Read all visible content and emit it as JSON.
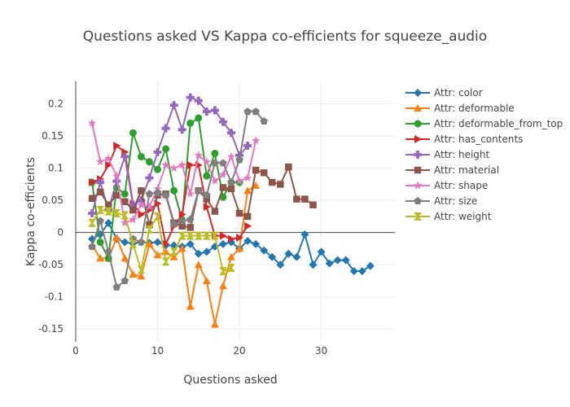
{
  "chart_data": {
    "type": "line",
    "title": "Questions asked VS Kappa co-efficients for squeeze_audio",
    "xlabel": "Questions asked",
    "ylabel": "Kappa co-efficients",
    "xlim": [
      0,
      39
    ],
    "ylim": [
      -0.17,
      0.235
    ],
    "xticks": [
      0,
      10,
      20,
      30
    ],
    "yticks": [
      -0.15,
      -0.1,
      -0.05,
      0,
      0.05,
      0.1,
      0.15,
      0.2
    ],
    "grid": true,
    "legend_position": "right",
    "series": [
      {
        "name": "Attr: color",
        "color": "#1f77b4",
        "marker": "diamond",
        "x": [
          2,
          3,
          4,
          5,
          6,
          7,
          8,
          9,
          10,
          11,
          12,
          13,
          14,
          15,
          16,
          17,
          18,
          19,
          20,
          21,
          22,
          23,
          24,
          25,
          26,
          27,
          28,
          29,
          30,
          31,
          32,
          33,
          34,
          35,
          36
        ],
        "y": [
          -0.01,
          -0.003,
          0.015,
          -0.01,
          -0.015,
          -0.017,
          -0.015,
          -0.016,
          -0.015,
          -0.02,
          -0.02,
          -0.022,
          -0.018,
          -0.033,
          -0.03,
          -0.022,
          -0.018,
          -0.015,
          -0.025,
          -0.013,
          -0.018,
          -0.028,
          -0.038,
          -0.05,
          -0.033,
          -0.038,
          -0.003,
          -0.05,
          -0.03,
          -0.048,
          -0.043,
          -0.043,
          -0.06,
          -0.06,
          -0.052
        ]
      },
      {
        "name": "Attr: deformable",
        "color": "#ff7f0e",
        "marker": "triangle-up",
        "x": [
          2,
          3,
          4,
          5,
          6,
          7,
          8,
          9,
          10,
          11,
          12,
          13,
          14,
          15,
          16,
          17,
          18,
          19,
          20,
          21,
          22
        ],
        "y": [
          -0.02,
          -0.04,
          -0.04,
          -0.008,
          -0.04,
          -0.065,
          -0.068,
          -0.018,
          -0.035,
          -0.03,
          -0.038,
          -0.025,
          -0.115,
          -0.05,
          -0.075,
          -0.143,
          -0.083,
          -0.038,
          -0.025,
          0.065,
          0.073
        ]
      },
      {
        "name": "Attr: deformable_from_top",
        "color": "#2ca02c",
        "marker": "circle",
        "x": [
          2,
          3,
          4,
          5,
          6,
          7,
          8,
          9,
          10,
          11,
          12,
          13,
          14,
          15,
          16,
          17,
          18,
          19,
          20
        ],
        "y": [
          0.078,
          -0.015,
          -0.04,
          0.07,
          0.06,
          0.155,
          0.118,
          0.11,
          0.098,
          0.13,
          0.065,
          0.02,
          0.17,
          0.178,
          0.088,
          0.123,
          0.055,
          0.078,
          0.078
        ]
      },
      {
        "name": "Attr: has_contents",
        "color": "#d62728",
        "marker": "triangle-right",
        "x": [
          2,
          3,
          4,
          5,
          6,
          7,
          8,
          9,
          10,
          11,
          12,
          13,
          14,
          15,
          16,
          17,
          18,
          19,
          20,
          21
        ],
        "y": [
          0.078,
          0.083,
          0.105,
          0.135,
          0.125,
          0.045,
          0.028,
          0.035,
          0.045,
          -0.018,
          0.01,
          0.028,
          0.105,
          0.105,
          0.04,
          -0.005,
          -0.005,
          -0.01,
          -0.008,
          0.01
        ]
      },
      {
        "name": "Attr: height",
        "color": "#9467bd",
        "marker": "cross",
        "x": [
          2,
          3,
          4,
          5,
          6,
          7,
          8,
          9,
          10,
          11,
          12,
          13,
          14,
          15,
          16,
          17,
          18,
          19,
          20,
          21
        ],
        "y": [
          0.03,
          0.078,
          0.035,
          0.08,
          0.118,
          0.043,
          0.05,
          0.085,
          0.125,
          0.162,
          0.198,
          0.16,
          0.21,
          0.205,
          0.188,
          0.19,
          0.172,
          0.155,
          0.12,
          0.135
        ]
      },
      {
        "name": "Attr: material",
        "color": "#8c564b",
        "marker": "square",
        "x": [
          2,
          3,
          4,
          5,
          6,
          7,
          8,
          9,
          10,
          11,
          12,
          13,
          14,
          15,
          16,
          17,
          18,
          19,
          20,
          21,
          22,
          23,
          24,
          25,
          26,
          27,
          28,
          29
        ],
        "y": [
          0.053,
          0.063,
          0.043,
          0.058,
          0.048,
          0.035,
          0.065,
          0.012,
          0.058,
          0.06,
          0.015,
          0.01,
          0.008,
          0.065,
          0.052,
          0.033,
          0.07,
          0.068,
          0.03,
          0.025,
          0.097,
          0.093,
          0.078,
          0.075,
          0.102,
          0.052,
          0.052,
          0.043
        ]
      },
      {
        "name": "Attr: shape",
        "color": "#e377c2",
        "marker": "star",
        "x": [
          2,
          3,
          4,
          5,
          6,
          7,
          8,
          9,
          10,
          11,
          12,
          13,
          14,
          15,
          16,
          17,
          18,
          19,
          20,
          21,
          22
        ],
        "y": [
          0.17,
          0.11,
          0.115,
          0.088,
          0.015,
          0.02,
          0.043,
          0.04,
          0.068,
          0.105,
          0.1,
          0.105,
          0.06,
          0.12,
          0.11,
          0.08,
          0.09,
          0.118,
          0.08,
          0.085,
          0.143
        ]
      },
      {
        "name": "Attr: size",
        "color": "#7f7f7f",
        "marker": "pentagon",
        "x": [
          2,
          3,
          4,
          5,
          6,
          7,
          8,
          9,
          10,
          11,
          12,
          13,
          14,
          15,
          16,
          17,
          18,
          19,
          20,
          21,
          22,
          23
        ],
        "y": [
          -0.022,
          0.018,
          -0.03,
          -0.085,
          -0.075,
          -0.01,
          -0.015,
          0.06,
          0.062,
          0.058,
          0.013,
          0.018,
          0.02,
          0.065,
          0.058,
          0.108,
          0.108,
          0.078,
          0.113,
          0.188,
          0.188,
          0.173
        ]
      },
      {
        "name": "Attr: weight",
        "color": "#bcbd22",
        "marker": "hourglass",
        "x": [
          2,
          3,
          4,
          5,
          6,
          7,
          8,
          9,
          10,
          11,
          12,
          13,
          14,
          15,
          16,
          17,
          18,
          19
        ],
        "y": [
          0.015,
          0.035,
          0.033,
          0.03,
          0.027,
          -0.018,
          -0.058,
          0.005,
          0.025,
          -0.045,
          -0.03,
          -0.005,
          -0.005,
          -0.005,
          -0.005,
          -0.005,
          -0.06,
          -0.055
        ]
      }
    ]
  }
}
